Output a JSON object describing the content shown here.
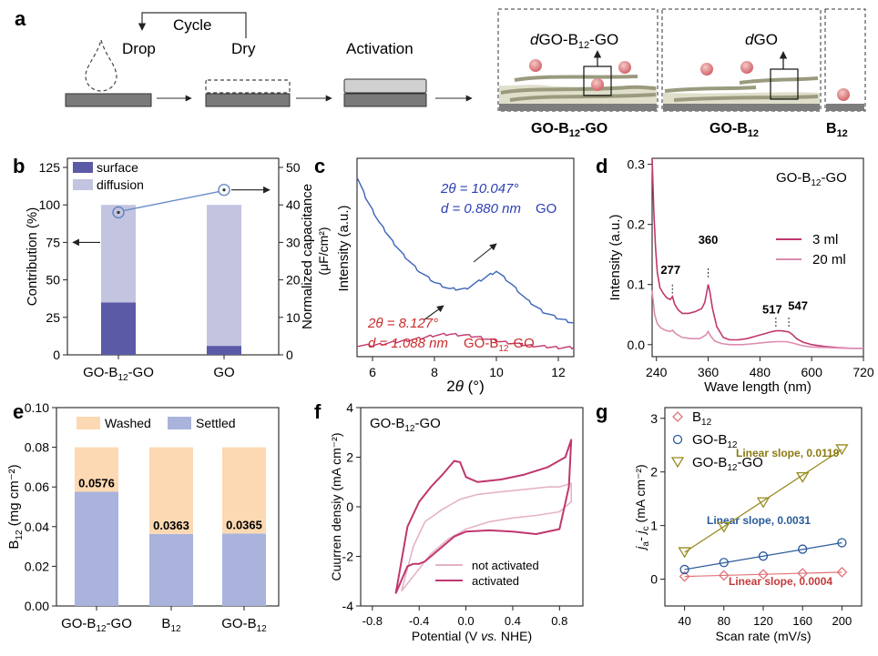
{
  "panel_a": {
    "label": "a",
    "cycle": "Cycle",
    "drop": "Drop",
    "dry": "Dry",
    "activation": "Activation",
    "box1_caption": "GO-B",
    "box1_caption_sub": "12",
    "box1_caption_tail": "-GO",
    "box1_d_prefix": "d",
    "box1_d_main": "GO-B",
    "box1_d_sub": "12",
    "box1_d_tail": "-GO",
    "box2_caption": "GO-B",
    "box2_caption_sub": "12",
    "box2_d_prefix": "d",
    "box2_d_main": "GO",
    "box3_caption": "B",
    "box3_caption_sub": "12"
  },
  "colors": {
    "surface": "#5b5aa6",
    "diffusion": "#c3c4e0",
    "go_line": "#3c63b8",
    "gob12go_line": "#c0376e",
    "washed": "#fcd9b3",
    "settled": "#a9b3dc",
    "uv_3ml": "#c0376e",
    "uv_20ml": "#dc8db0",
    "cv_not": "#e5b3c8",
    "cv_act": "#c0376e",
    "b12": "#e0747a",
    "gob12": "#2a5a9a",
    "gob12go": "#968a1e",
    "slope_gob12go": "#8a7a10",
    "slope_gob12": "#2a5a9a",
    "slope_b12": "#c33a3a",
    "label_d": "#cc2b2b",
    "label_blue": "#2d3fb5"
  },
  "chart_data": [
    {
      "panel": "b",
      "type": "bar",
      "categories": [
        "GO-B12-GO",
        "GO"
      ],
      "category_labels": [
        {
          "main": "GO-B",
          "sub": "12",
          "tail": "-GO"
        },
        {
          "main": "GO",
          "sub": "",
          "tail": ""
        }
      ],
      "series": [
        {
          "name": "surface",
          "values": [
            35,
            6
          ]
        },
        {
          "name": "diffusion",
          "values": [
            65,
            94
          ]
        }
      ],
      "secondary_points": [
        38,
        44
      ],
      "ylabel": "Contribution (%)",
      "ylabel2_line1": "Normalized capacitance",
      "ylabel2_line2": "(μF/cm²)",
      "ylim": [
        0,
        125
      ],
      "yticks": [
        0,
        25,
        50,
        75,
        100,
        125
      ],
      "ylim2": [
        0,
        50
      ],
      "yticks2": [
        0,
        10,
        20,
        30,
        40,
        50
      ],
      "legend": "top-left"
    },
    {
      "panel": "c",
      "type": "line",
      "xlabel_main": "2",
      "xlabel_theta": "θ",
      "xlabel_unit": " (°)",
      "ylabel": "Intensity (a.u.)",
      "xlim": [
        5.5,
        12.5
      ],
      "xticks": [
        6,
        8,
        10,
        12
      ],
      "series": [
        {
          "name": "GO",
          "x": [
            5.5,
            5.8,
            6.2,
            6.6,
            7.0,
            7.5,
            8.0,
            8.5,
            9.0,
            9.5,
            10.0,
            10.5,
            11.0,
            11.5,
            12.0,
            12.5
          ],
          "y": [
            100,
            90,
            80,
            72,
            65,
            58,
            53,
            50,
            50,
            54,
            58,
            52,
            45,
            40,
            37,
            35
          ]
        },
        {
          "name": "GO-B12-GO",
          "x": [
            5.5,
            6.0,
            6.5,
            7.0,
            7.5,
            8.0,
            8.5,
            9.0,
            9.5,
            10.0,
            10.5,
            11.0,
            11.5,
            12.0,
            12.5
          ],
          "y": [
            25,
            25,
            26,
            27,
            28,
            29.5,
            30,
            29.5,
            28.5,
            27,
            26,
            25,
            24.5,
            24,
            24
          ]
        }
      ],
      "annot_go_theta": "2θ = 10.047°",
      "annot_go_d": "d = 0.880 nm",
      "annot_go_name": "GO",
      "annot_gb_theta": "2θ = 8.127°",
      "annot_gb_d": "d = 1.088 nm",
      "annot_gb_name_main": "GO-B",
      "annot_gb_name_sub": "12",
      "annot_gb_name_tail": "-GO"
    },
    {
      "panel": "d",
      "type": "line",
      "title_main": "GO-B",
      "title_sub": "12",
      "title_tail": "-GO",
      "xlabel": "Wave length (nm)",
      "ylabel": "Intensity (a.u.)",
      "xlim": [
        230,
        720
      ],
      "xticks": [
        240,
        360,
        480,
        600,
        720
      ],
      "ylim": [
        -0.02,
        0.31
      ],
      "yticks": [
        0.0,
        0.1,
        0.2,
        0.3
      ],
      "series": [
        {
          "name": "3 ml",
          "x": [
            230,
            234,
            238,
            242,
            248,
            256,
            264,
            272,
            277,
            282,
            290,
            300,
            315,
            330,
            345,
            352,
            356,
            360,
            364,
            370,
            380,
            395,
            410,
            430,
            450,
            470,
            490,
            505,
            517,
            530,
            540,
            547,
            555,
            565,
            580,
            600,
            630,
            660,
            690,
            720
          ],
          "y": [
            0.31,
            0.22,
            0.16,
            0.12,
            0.095,
            0.085,
            0.078,
            0.075,
            0.08,
            0.068,
            0.058,
            0.052,
            0.052,
            0.055,
            0.06,
            0.07,
            0.085,
            0.1,
            0.088,
            0.06,
            0.03,
            0.012,
            0.008,
            0.008,
            0.01,
            0.014,
            0.018,
            0.021,
            0.023,
            0.023,
            0.022,
            0.021,
            0.017,
            0.01,
            0.004,
            0.0,
            -0.003,
            -0.005,
            -0.006,
            -0.006
          ]
        },
        {
          "name": "20 ml",
          "x": [
            230,
            236,
            242,
            250,
            260,
            272,
            277,
            285,
            300,
            320,
            340,
            355,
            360,
            366,
            375,
            390,
            410,
            440,
            470,
            500,
            520,
            540,
            547,
            560,
            580,
            600,
            640,
            680,
            720
          ],
          "y": [
            0.09,
            0.05,
            0.035,
            0.028,
            0.024,
            0.022,
            0.024,
            0.018,
            0.012,
            0.01,
            0.01,
            0.016,
            0.022,
            0.014,
            0.006,
            0.002,
            0.0,
            0.0,
            0.002,
            0.004,
            0.005,
            0.005,
            0.004,
            0.002,
            -0.002,
            -0.004,
            -0.005,
            -0.006,
            -0.006
          ]
        }
      ],
      "peaks": [
        {
          "x": 277,
          "label": "277"
        },
        {
          "x": 360,
          "label": "360"
        },
        {
          "x": 517,
          "label": "517"
        },
        {
          "x": 547,
          "label": "547"
        }
      ],
      "legend": "right"
    },
    {
      "panel": "e",
      "type": "bar",
      "categories": [
        "GO-B12-GO",
        "B12",
        "GO-B12"
      ],
      "category_labels": [
        {
          "main": "GO-B",
          "sub": "12",
          "tail": "-GO"
        },
        {
          "main": "B",
          "sub": "12",
          "tail": ""
        },
        {
          "main": "GO-B",
          "sub": "12",
          "tail": ""
        }
      ],
      "series": [
        {
          "name": "Settled",
          "values": [
            0.0576,
            0.0363,
            0.0365
          ]
        },
        {
          "name": "Washed",
          "values": [
            0.0224,
            0.0437,
            0.0435
          ]
        }
      ],
      "data_labels": [
        "0.0576",
        "0.0363",
        "0.0365"
      ],
      "ylabel_main": "B",
      "ylabel_sub": "12",
      "ylabel_tail": " (mg cm⁻²)",
      "ylim": [
        0,
        0.1
      ],
      "yticks": [
        "0.00",
        "0.02",
        "0.04",
        "0.06",
        "0.08",
        "0.10"
      ],
      "legend": "top"
    },
    {
      "panel": "f",
      "type": "line",
      "title_main": "GO-B",
      "title_sub": "12",
      "title_tail": "-GO",
      "xlabel": "Potential (V vs. NHE)",
      "xlabel_pre": "Potential (V ",
      "xlabel_italic": "vs.",
      "xlabel_post": " NHE)",
      "ylabel": "Cuurren densiy (mA cm⁻²)",
      "xlim": [
        -0.9,
        1.0
      ],
      "xticks": [
        "-0.8",
        "-0.4",
        "0.0",
        "0.4",
        "0.8"
      ],
      "ylim": [
        -4,
        4
      ],
      "yticks": [
        -4,
        -2,
        0,
        2,
        4
      ],
      "series": [
        {
          "name": "not activated",
          "x": [
            -0.55,
            -0.45,
            -0.35,
            -0.2,
            -0.05,
            0.1,
            0.3,
            0.5,
            0.7,
            0.8,
            0.9,
            0.9,
            0.8,
            0.6,
            0.4,
            0.2,
            0.0,
            -0.15,
            -0.3,
            -0.45,
            -0.55
          ],
          "y": [
            -3.4,
            -1.6,
            -0.6,
            -0.1,
            0.3,
            0.5,
            0.6,
            0.7,
            0.8,
            0.8,
            0.95,
            0.2,
            -0.2,
            -0.35,
            -0.45,
            -0.6,
            -0.9,
            -1.3,
            -1.9,
            -2.8,
            -3.4
          ]
        },
        {
          "name": "activated",
          "x": [
            -0.6,
            -0.5,
            -0.4,
            -0.3,
            -0.2,
            -0.1,
            -0.05,
            0.0,
            0.1,
            0.3,
            0.5,
            0.7,
            0.85,
            0.9,
            0.88,
            0.8,
            0.6,
            0.4,
            0.2,
            0.0,
            -0.1,
            -0.2,
            -0.3,
            -0.35,
            -0.4,
            -0.45,
            -0.5,
            -0.6
          ],
          "y": [
            -3.5,
            -0.8,
            0.2,
            0.8,
            1.3,
            1.85,
            1.8,
            1.2,
            1.0,
            1.1,
            1.3,
            1.6,
            2.0,
            2.7,
            0.8,
            -0.9,
            -1.1,
            -1.0,
            -0.95,
            -1.0,
            -1.2,
            -1.6,
            -2.0,
            -2.2,
            -2.3,
            -2.3,
            -2.4,
            -3.5
          ]
        }
      ],
      "legend": "bottom-right"
    },
    {
      "panel": "g",
      "type": "scatter",
      "xlabel": "Scan rate (mV/s)",
      "ylabel": "j_a - j_c (mA cm⁻²)",
      "ylabel_pre": "j",
      "ylabel_a": "a",
      "ylabel_mid": "- j",
      "ylabel_c": "c",
      "ylabel_post": " (mA cm⁻²)",
      "xlim": [
        20,
        220
      ],
      "xticks": [
        40,
        80,
        120,
        160,
        200
      ],
      "ylim": [
        -0.5,
        3.2
      ],
      "yticks": [
        0,
        1,
        2,
        3
      ],
      "series": [
        {
          "name": "B12",
          "name_main": "B",
          "name_sub": "12",
          "name_tail": "",
          "marker": "diamond",
          "x": [
            40,
            80,
            120,
            160,
            200
          ],
          "y": [
            0.05,
            0.07,
            0.09,
            0.11,
            0.13
          ],
          "slope_label": "Linear slope, 0.0004"
        },
        {
          "name": "GO-B12",
          "name_main": "GO-B",
          "name_sub": "12",
          "name_tail": "",
          "marker": "circle",
          "x": [
            40,
            80,
            120,
            160,
            200
          ],
          "y": [
            0.18,
            0.31,
            0.43,
            0.56,
            0.68
          ],
          "slope_label": "Linear slope, 0.0031"
        },
        {
          "name": "GO-B12-GO",
          "name_main": "GO-B",
          "name_sub": "12",
          "name_tail": "-GO",
          "marker": "triangle-down",
          "x": [
            40,
            80,
            120,
            160,
            200
          ],
          "y": [
            0.5,
            0.97,
            1.43,
            1.9,
            2.42
          ],
          "slope_label": "Linear slope, 0.0119"
        }
      ],
      "legend": "top-left"
    }
  ],
  "panel_labels": {
    "b": "b",
    "c": "c",
    "d": "d",
    "e": "e",
    "f": "f",
    "g": "g"
  }
}
